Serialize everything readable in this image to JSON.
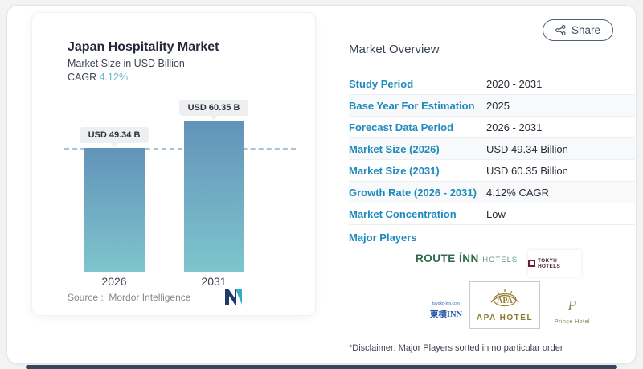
{
  "share": {
    "label": "Share"
  },
  "chart_card": {
    "title": "Japan Hospitality Market",
    "subtitle": "Market Size in USD Billion",
    "cagr_label": "CAGR",
    "cagr_value": "4.12%",
    "source_label": "Source :",
    "source_value": "Mordor Intelligence"
  },
  "chart_data": {
    "type": "bar",
    "title": "Japan Hospitality Market",
    "subtitle": "Market Size in USD Billion",
    "categories": [
      "2026",
      "2031"
    ],
    "values": [
      49.34,
      60.35
    ],
    "value_labels": [
      "USD 49.34 B",
      "USD 60.35 B"
    ],
    "unit": "USD Billion",
    "cagr": "4.12%",
    "ylim": [
      0,
      65
    ],
    "reference_line": 49.34,
    "grid": false,
    "bar_gradient": [
      "#6293b9",
      "#7ec5cd"
    ],
    "source": "Mordor Intelligence"
  },
  "overview": {
    "heading": "Market Overview",
    "rows": [
      {
        "label": "Study Period",
        "value": "2020 - 2031"
      },
      {
        "label": "Base Year For Estimation",
        "value": "2025"
      },
      {
        "label": "Forecast Data Period",
        "value": "2026 - 2031"
      },
      {
        "label": "Market Size (2026)",
        "value": "USD 49.34 Billion"
      },
      {
        "label": "Market Size (2031)",
        "value": "USD 60.35 Billion"
      },
      {
        "label": "Growth Rate (2026 - 2031)",
        "value": "4.12% CAGR"
      },
      {
        "label": "Market Concentration",
        "value": "Low"
      }
    ],
    "major_players_label": "Major Players",
    "disclaimer": "*Disclaimer: Major Players sorted in no particular order"
  },
  "players": {
    "route_inn": {
      "main": "ROUTE ÍNN",
      "suffix": "HOTELS"
    },
    "tokyu": {
      "text": "TOKYU HOTELS"
    },
    "toyoko": {
      "url": "toyoko-inn.com",
      "text": "東横INN"
    },
    "apa": {
      "emblem": "APA",
      "text": "APA HOTEL"
    },
    "prince": {
      "initial": "P",
      "text": "Prince Hotel"
    }
  },
  "colors": {
    "label_blue": "#1d8abd",
    "cagr_teal": "#72b7cd",
    "bar_top": "#6293b9",
    "bar_bottom": "#7ec5cd",
    "dashed_line": "#a7c3d9",
    "route_inn_green": "#2d6b4c",
    "tokyu_maroon": "#6e1d2f",
    "apa_gold": "#8d7830",
    "toyoko_blue": "#2456a8",
    "prince_gold": "#8c7c50"
  }
}
